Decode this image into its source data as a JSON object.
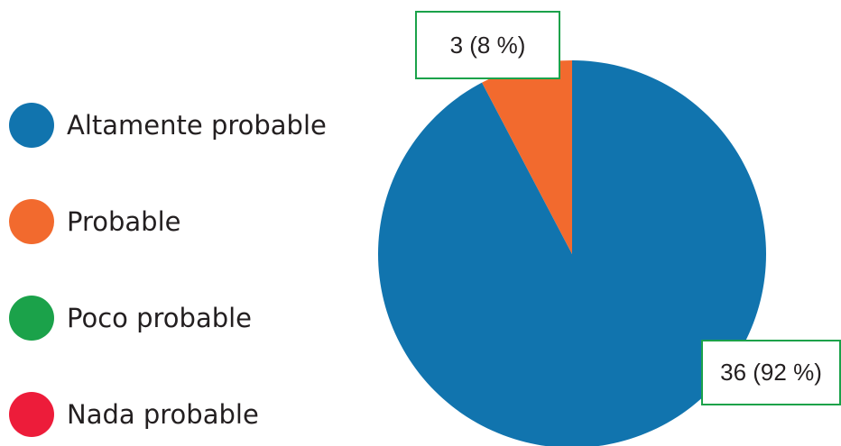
{
  "chart_data": {
    "type": "pie",
    "title": "",
    "start_angle_deg": 0,
    "direction": "clockwise",
    "slices": [
      {
        "label": "Altamente probable",
        "value": 36,
        "percent": 92,
        "data_label": "36 (92 %)",
        "color": "#1174ae"
      },
      {
        "label": "Probable",
        "value": 3,
        "percent": 8,
        "data_label": "3 (8 %)",
        "color": "#f26a2e"
      },
      {
        "label": "Poco probable",
        "value": 0,
        "percent": 0,
        "color": "#1ba24a"
      },
      {
        "label": "Nada probable",
        "value": 0,
        "percent": 0,
        "color": "#ed1c3a"
      }
    ],
    "legend": {
      "position": "left",
      "entries": [
        "Altamente probable",
        "Probable",
        "Poco probable",
        "Nada probable"
      ]
    },
    "data_label_border_color": "#1ba24a"
  }
}
